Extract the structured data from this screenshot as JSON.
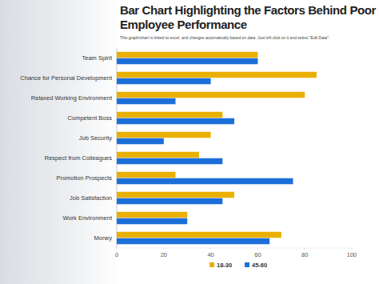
{
  "chart_data": {
    "type": "bar",
    "orientation": "horizontal",
    "title": "Bar Chart Highlighting the Factors Behind Poor Employee Performance",
    "subtitle": "This graph/chart is linked to excel, and changes automatically based on data. Just left click on it and select \"Edit Data\".",
    "categories": [
      "Team Spirit",
      "Chance for Personal Development",
      "Relaxed Working Environment",
      "Competent Boss",
      "Job Security",
      "Respect from Colleagues",
      "Promotion Prospects",
      "Job Satisfaction",
      "Work Environment",
      "Money"
    ],
    "series": [
      {
        "name": "18-30",
        "color": "#eab000",
        "values": [
          60,
          85,
          80,
          45,
          40,
          35,
          25,
          50,
          30,
          70
        ]
      },
      {
        "name": "45-60",
        "color": "#1c6fd9",
        "values": [
          60,
          40,
          25,
          50,
          20,
          45,
          75,
          45,
          30,
          65
        ]
      }
    ],
    "xlim": [
      0,
      100
    ],
    "xticks": [
      0,
      20,
      40,
      60,
      80,
      100
    ],
    "grid": false,
    "legend": "bottom"
  }
}
